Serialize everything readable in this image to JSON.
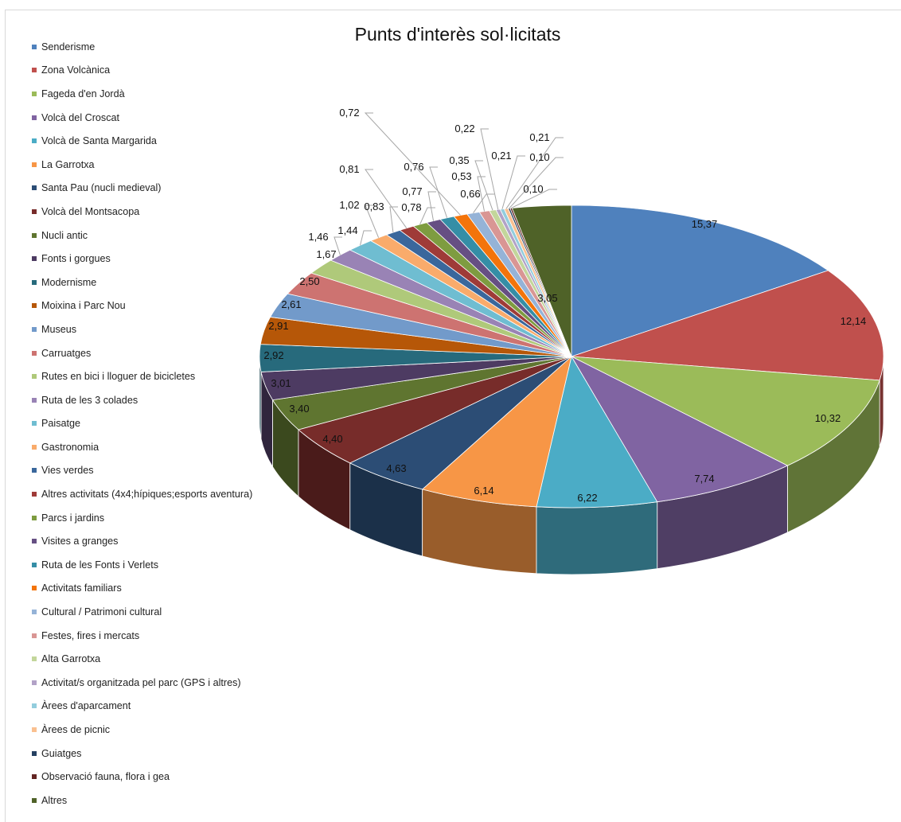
{
  "chart_data": {
    "type": "pie",
    "title": "Punts d'interès sol·licitats",
    "legend_position": "left",
    "categories": [
      "Senderisme",
      "Zona Volcànica",
      "Fageda d'en Jordà",
      "Volcà del Croscat",
      "Volcà de Santa Margarida",
      "La Garrotxa",
      "Santa Pau (nucli medieval)",
      "Volcà del Montsacopa",
      "Nucli antic",
      "Fonts i gorgues",
      "Modernisme",
      "Moixina i Parc Nou",
      "Museus",
      "Carruatges",
      "Rutes en bici i lloguer de bicicletes",
      "Ruta de les 3 colades",
      "Paisatge",
      "Gastronomia",
      "Vies verdes",
      "Altres activitats (4x4;hípiques;esports aventura)",
      "Parcs i jardins",
      "Visites a granges",
      "Ruta de les Fonts i Verlets",
      "Activitats familiars",
      "Cultural / Patrimoni cultural",
      "Festes, fires i mercats",
      "Alta Garrotxa",
      "Activitat/s organitzada pel parc (GPS i altres)",
      "Àrees d'aparcament",
      "Àrees de picnic",
      "Guiatges",
      "Observació fauna, flora i gea",
      "Altres"
    ],
    "values": [
      15.37,
      12.14,
      10.32,
      7.74,
      6.22,
      6.14,
      4.63,
      4.4,
      3.4,
      3.01,
      2.92,
      2.91,
      2.61,
      2.5,
      1.67,
      1.46,
      1.44,
      1.02,
      0.83,
      0.81,
      0.78,
      0.77,
      0.76,
      0.72,
      0.66,
      0.53,
      0.35,
      0.22,
      0.21,
      0.21,
      0.1,
      0.1,
      3.05
    ],
    "labels": [
      "15,37",
      "12,14",
      "10,32",
      "7,74",
      "6,22",
      "6,14",
      "4,63",
      "4,40",
      "3,40",
      "3,01",
      "2,92",
      "2,91",
      "2,61",
      "2,50",
      "1,67",
      "1,46",
      "1,44",
      "1,02",
      "0,83",
      "0,81",
      "0,78",
      "0,77",
      "0,76",
      "0,72",
      "0,66",
      "0,53",
      "0,35",
      "0,22",
      "0,21",
      "0,21",
      "0,10",
      "0,10",
      "3,05"
    ],
    "colors": [
      "#4F81BD",
      "#C0504D",
      "#9BBB59",
      "#8064A2",
      "#4BACC6",
      "#F79646",
      "#2C4D75",
      "#772C2A",
      "#5F7530",
      "#4D3B62",
      "#276A7C",
      "#B65708",
      "#729ACA",
      "#CD7371",
      "#AFC97A",
      "#9983B5",
      "#6FBDD1",
      "#F9AB6B",
      "#3A679C",
      "#9F3B38",
      "#7E9C40",
      "#664F83",
      "#358EA6",
      "#F3740B",
      "#95B3D7",
      "#D99694",
      "#C3D69B",
      "#B2A2C7",
      "#93CDDD",
      "#FAC090",
      "#254061",
      "#632523",
      "#4F6228"
    ]
  }
}
